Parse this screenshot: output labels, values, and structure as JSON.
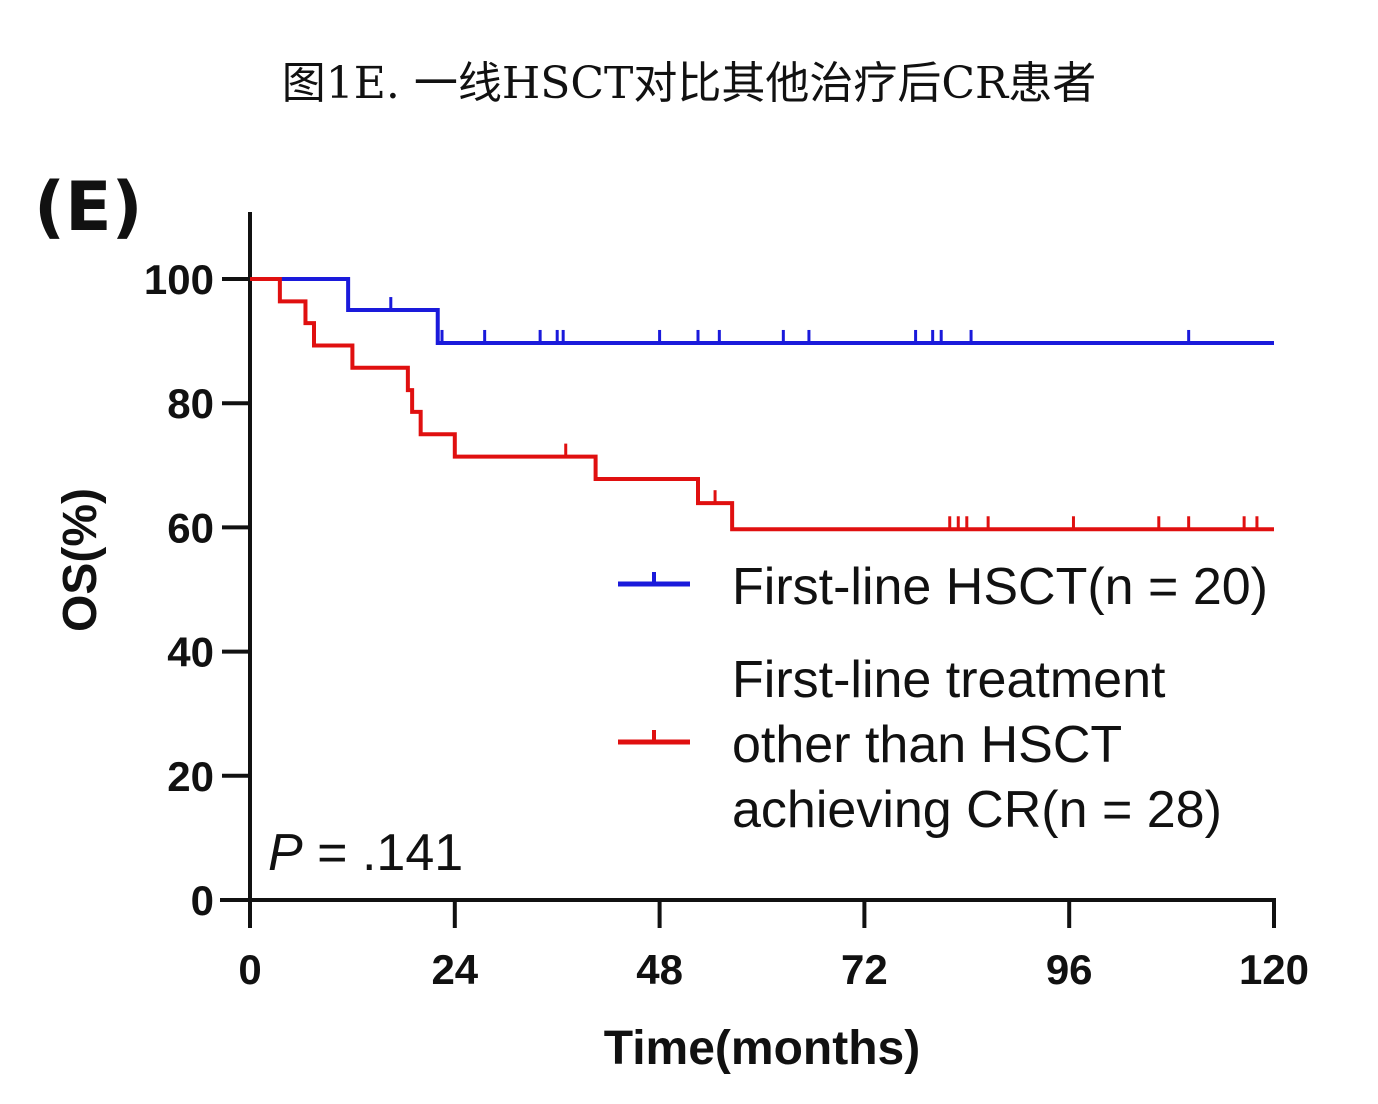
{
  "page_title": "图1E. 一线HSCT对比其他治疗后CR患者",
  "panel_label": "(E)",
  "p_value": {
    "prefix": "P",
    "text": " = .141"
  },
  "colors": {
    "first_line_hsct": "#1a1adb",
    "other_than_hsct": "#e01010",
    "axis": "#111111"
  },
  "chart_data": {
    "type": "line",
    "subtype": "kaplan-meier",
    "xlabel": "Time(months)",
    "ylabel": "OS(%)",
    "xlim": [
      0,
      120
    ],
    "ylim": [
      0,
      100
    ],
    "xticks": [
      0,
      24,
      48,
      72,
      96,
      120
    ],
    "yticks": [
      0,
      20,
      40,
      60,
      80,
      100
    ],
    "grid": false,
    "legend_position": "right",
    "series": [
      {
        "name": "First-line HSCT(n = 20)",
        "color": "#1a1adb",
        "steps": [
          [
            0,
            100
          ],
          [
            11.5,
            95
          ],
          [
            22,
            89.7
          ],
          [
            120,
            89.7
          ]
        ],
        "censored": [
          [
            16.5,
            95
          ],
          [
            22.5,
            89.7
          ],
          [
            27.5,
            89.7
          ],
          [
            34,
            89.7
          ],
          [
            36,
            89.7
          ],
          [
            36.7,
            89.7
          ],
          [
            48,
            89.7
          ],
          [
            52.5,
            89.7
          ],
          [
            55,
            89.7
          ],
          [
            62.5,
            89.7
          ],
          [
            65.5,
            89.7
          ],
          [
            78,
            89.7
          ],
          [
            80,
            89.7
          ],
          [
            81,
            89.7
          ],
          [
            84.5,
            89.7
          ],
          [
            110,
            89.7
          ]
        ]
      },
      {
        "name": "First-line treatment other than HSCT achieving CR(n = 28)",
        "color": "#e01010",
        "steps": [
          [
            0,
            100
          ],
          [
            3.5,
            96.4
          ],
          [
            6.5,
            92.9
          ],
          [
            7.5,
            89.3
          ],
          [
            12,
            85.7
          ],
          [
            18.5,
            82.1
          ],
          [
            19,
            78.6
          ],
          [
            20,
            75.0
          ],
          [
            24,
            71.4
          ],
          [
            40.5,
            67.8
          ],
          [
            52.5,
            63.9
          ],
          [
            56.5,
            59.7
          ],
          [
            120,
            59.7
          ]
        ],
        "censored": [
          [
            37,
            71.4
          ],
          [
            54.5,
            63.9
          ],
          [
            82,
            59.7
          ],
          [
            83,
            59.7
          ],
          [
            84,
            59.7
          ],
          [
            86.5,
            59.7
          ],
          [
            96.5,
            59.7
          ],
          [
            106.5,
            59.7
          ],
          [
            110,
            59.7
          ],
          [
            116.5,
            59.7
          ],
          [
            118,
            59.7
          ]
        ]
      }
    ],
    "legend": [
      {
        "lines": [
          "First-line HSCT(n = 20)"
        ]
      },
      {
        "lines": [
          "First-line treatment",
          "other than HSCT",
          "achieving CR(n = 28)"
        ]
      }
    ]
  }
}
